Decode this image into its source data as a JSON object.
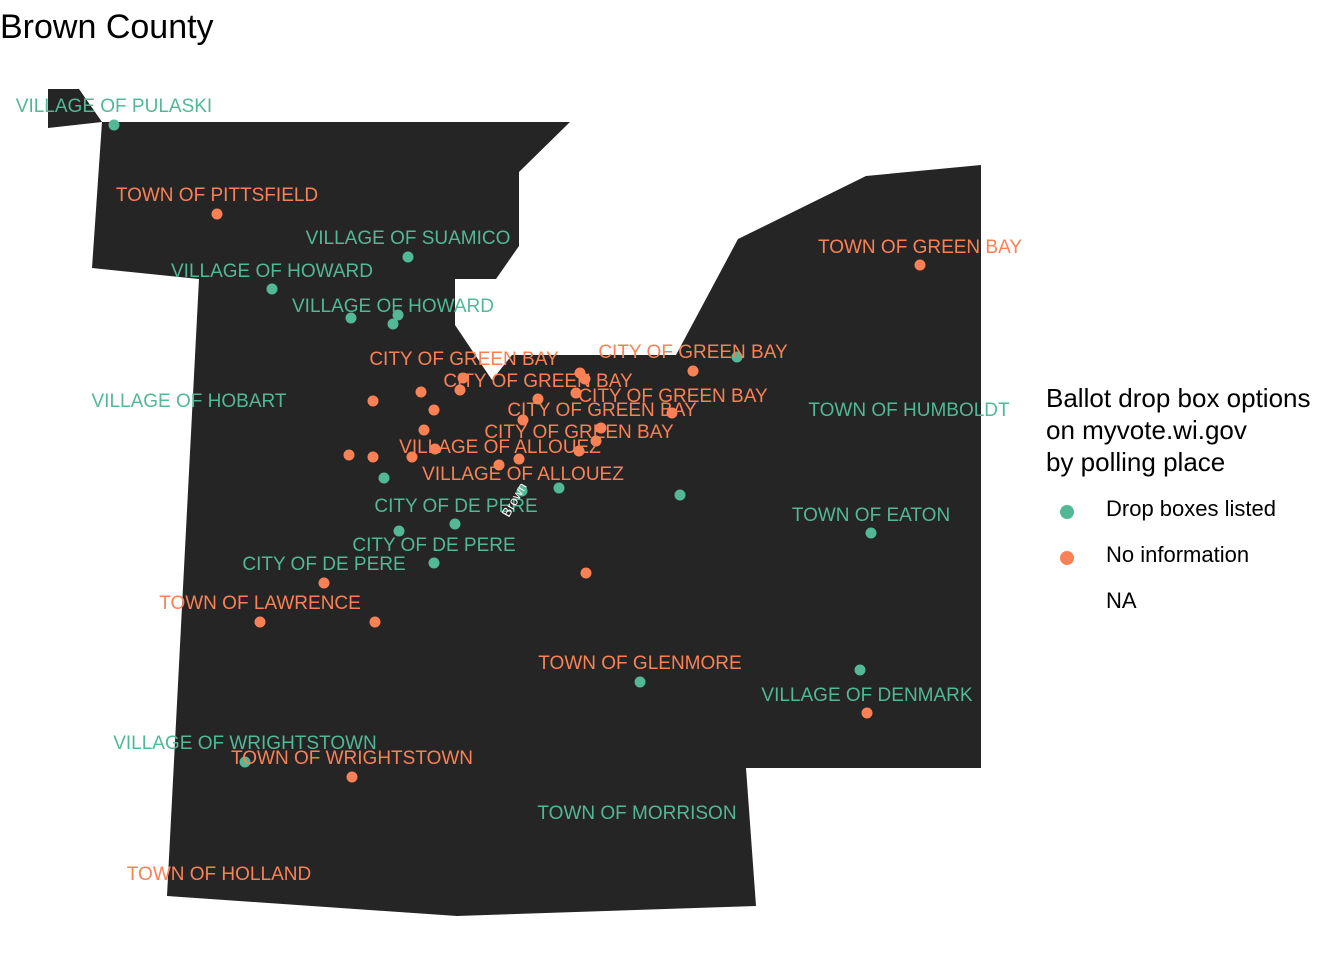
{
  "title": "Brown County",
  "colors": {
    "county_fill": "#252525",
    "drop_boxes_listed": "#52b896",
    "no_information": "#fa8156",
    "county_label": "#ffffff"
  },
  "county_label": "Brown",
  "legend": {
    "title": "Ballot drop box options\non myvote.wi.gov\nby polling place",
    "items": [
      {
        "label": "Drop boxes listed",
        "color": "#52b896"
      },
      {
        "label": "No information",
        "color": "#fa8156"
      },
      {
        "label": "NA",
        "color": ""
      }
    ]
  },
  "place_labels": [
    {
      "text": "VILLAGE OF PULASKI",
      "status": "drop_boxes_listed"
    },
    {
      "text": "TOWN OF PITTSFIELD",
      "status": "no_information"
    },
    {
      "text": "VILLAGE OF SUAMICO",
      "status": "drop_boxes_listed"
    },
    {
      "text": "VILLAGE OF HOWARD",
      "status": "drop_boxes_listed"
    },
    {
      "text": "VILLAGE OF HOWARD",
      "status": "drop_boxes_listed"
    },
    {
      "text": "TOWN OF GREEN BAY",
      "status": "no_information"
    },
    {
      "text": "CITY OF GREEN BAY",
      "status": "no_information"
    },
    {
      "text": "CITY OF GREEN BAY",
      "status": "no_information"
    },
    {
      "text": "CITY OF GREEN BAY",
      "status": "no_information"
    },
    {
      "text": "CITY OF GREEN BAY",
      "status": "no_information"
    },
    {
      "text": "CITY OF GREEN BAY",
      "status": "no_information"
    },
    {
      "text": "CITY OF GREEN BAY",
      "status": "no_information"
    },
    {
      "text": "VILLAGE OF HOBART",
      "status": "drop_boxes_listed"
    },
    {
      "text": "TOWN OF HUMBOLDT",
      "status": "drop_boxes_listed"
    },
    {
      "text": "VILLAGE OF ALLOUEZ",
      "status": "no_information"
    },
    {
      "text": "VILLAGE OF ALLOUEZ",
      "status": "no_information"
    },
    {
      "text": "CITY OF DE PERE",
      "status": "drop_boxes_listed"
    },
    {
      "text": "TOWN OF EATON",
      "status": "drop_boxes_listed"
    },
    {
      "text": "CITY OF DE PERE",
      "status": "drop_boxes_listed"
    },
    {
      "text": "CITY OF DE PERE",
      "status": "drop_boxes_listed"
    },
    {
      "text": "TOWN OF LAWRENCE",
      "status": "no_information"
    },
    {
      "text": "TOWN OF GLENMORE",
      "status": "no_information"
    },
    {
      "text": "VILLAGE OF DENMARK",
      "status": "drop_boxes_listed"
    },
    {
      "text": "VILLAGE OF WRIGHTSTOWN",
      "status": "drop_boxes_listed"
    },
    {
      "text": "TOWN OF WRIGHTSTOWN",
      "status": "no_information"
    },
    {
      "text": "TOWN OF MORRISON",
      "status": "drop_boxes_listed"
    },
    {
      "text": "TOWN OF HOLLAND",
      "status": "no_information"
    }
  ],
  "polling_places": [
    {
      "status": "drop_boxes_listed"
    },
    {
      "status": "no_information"
    },
    {
      "status": "drop_boxes_listed"
    },
    {
      "status": "drop_boxes_listed"
    },
    {
      "status": "drop_boxes_listed"
    },
    {
      "status": "drop_boxes_listed"
    },
    {
      "status": "drop_boxes_listed"
    },
    {
      "status": "no_information"
    },
    {
      "status": "drop_boxes_listed"
    },
    {
      "status": "no_information"
    },
    {
      "status": "no_information"
    },
    {
      "status": "no_information"
    },
    {
      "status": "no_information"
    },
    {
      "status": "no_information"
    },
    {
      "status": "no_information"
    },
    {
      "status": "no_information"
    },
    {
      "status": "no_information"
    },
    {
      "status": "no_information"
    },
    {
      "status": "no_information"
    },
    {
      "status": "no_information"
    },
    {
      "status": "no_information"
    },
    {
      "status": "no_information"
    },
    {
      "status": "no_information"
    },
    {
      "status": "no_information"
    },
    {
      "status": "no_information"
    },
    {
      "status": "no_information"
    },
    {
      "status": "no_information"
    },
    {
      "status": "no_information"
    },
    {
      "status": "no_information"
    },
    {
      "status": "no_information"
    },
    {
      "status": "no_information"
    },
    {
      "status": "drop_boxes_listed"
    },
    {
      "status": "drop_boxes_listed"
    },
    {
      "status": "drop_boxes_listed"
    },
    {
      "status": "drop_boxes_listed"
    },
    {
      "status": "drop_boxes_listed"
    },
    {
      "status": "drop_boxes_listed"
    },
    {
      "status": "drop_boxes_listed"
    },
    {
      "status": "drop_boxes_listed"
    },
    {
      "status": "no_information"
    },
    {
      "status": "no_information"
    },
    {
      "status": "no_information"
    },
    {
      "status": "no_information"
    },
    {
      "status": "drop_boxes_listed"
    },
    {
      "status": "drop_boxes_listed"
    },
    {
      "status": "no_information"
    },
    {
      "status": "drop_boxes_listed"
    },
    {
      "status": "no_information"
    }
  ]
}
